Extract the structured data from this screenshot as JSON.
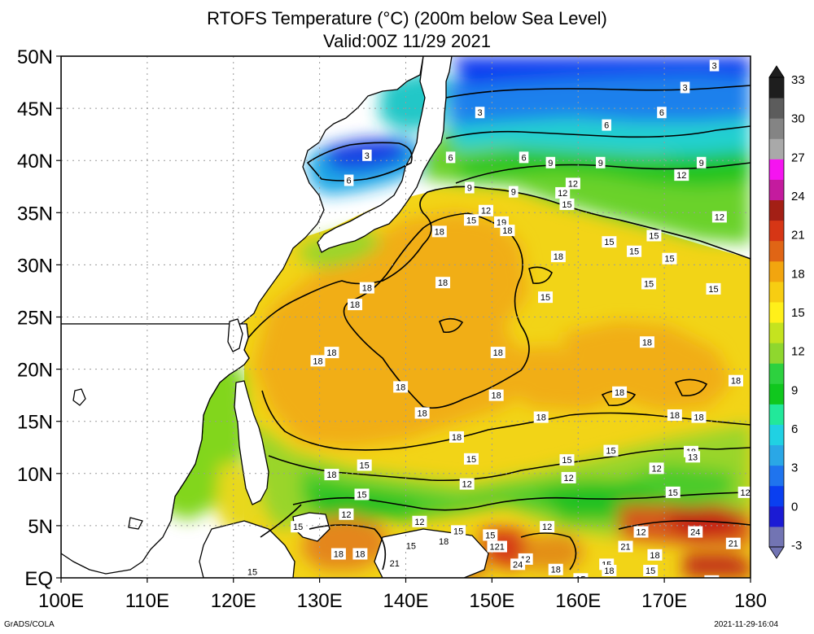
{
  "title": {
    "line1": "RTOFS Temperature (°C) (200m below Sea Level)",
    "line2": "Valid:00Z 11/29 2021"
  },
  "footer": {
    "left": "GrADS/COLA",
    "right": "2021-11-29-16:04"
  },
  "map": {
    "lon_labels": [
      "100E",
      "110E",
      "120E",
      "130E",
      "140E",
      "150E",
      "160E",
      "170E",
      "180"
    ],
    "lat_labels": [
      "50N",
      "45N",
      "40N",
      "35N",
      "30N",
      "25N",
      "20N",
      "15N",
      "10N",
      "5N",
      "EQ"
    ],
    "lon_range": [
      100,
      180
    ],
    "lat_range": [
      0,
      50
    ],
    "gridlines": "dotted",
    "contour_labels": [
      {
        "v": "3",
        "lon": 175.8,
        "lat": 49.1
      },
      {
        "v": "3",
        "lon": 172.4,
        "lat": 47.0
      },
      {
        "v": "3",
        "lon": 148.6,
        "lat": 44.6
      },
      {
        "v": "6",
        "lon": 169.7,
        "lat": 44.6
      },
      {
        "v": "6",
        "lon": 163.3,
        "lat": 43.4
      },
      {
        "v": "3",
        "lon": 135.5,
        "lat": 40.5
      },
      {
        "v": "6",
        "lon": 145.2,
        "lat": 40.3
      },
      {
        "v": "6",
        "lon": 153.7,
        "lat": 40.3
      },
      {
        "v": "9",
        "lon": 156.8,
        "lat": 39.8
      },
      {
        "v": "9",
        "lon": 162.6,
        "lat": 39.8
      },
      {
        "v": "9",
        "lon": 174.3,
        "lat": 39.8
      },
      {
        "v": "6",
        "lon": 133.4,
        "lat": 38.1
      },
      {
        "v": "12",
        "lon": 172.0,
        "lat": 38.6
      },
      {
        "v": "12",
        "lon": 159.4,
        "lat": 37.8
      },
      {
        "v": "9",
        "lon": 147.4,
        "lat": 37.4
      },
      {
        "v": "9",
        "lon": 152.5,
        "lat": 37.0
      },
      {
        "v": "12",
        "lon": 158.2,
        "lat": 36.9
      },
      {
        "v": "15",
        "lon": 158.7,
        "lat": 35.8
      },
      {
        "v": "12",
        "lon": 149.3,
        "lat": 35.2
      },
      {
        "v": "15",
        "lon": 147.6,
        "lat": 34.3
      },
      {
        "v": "19",
        "lon": 151.1,
        "lat": 34.1
      },
      {
        "v": "18",
        "lon": 151.8,
        "lat": 33.3
      },
      {
        "v": "18",
        "lon": 143.9,
        "lat": 33.2
      },
      {
        "v": "12",
        "lon": 176.4,
        "lat": 34.6
      },
      {
        "v": "15",
        "lon": 168.8,
        "lat": 32.8
      },
      {
        "v": "15",
        "lon": 163.6,
        "lat": 32.2
      },
      {
        "v": "15",
        "lon": 166.5,
        "lat": 31.3
      },
      {
        "v": "18",
        "lon": 157.7,
        "lat": 30.8
      },
      {
        "v": "15",
        "lon": 170.6,
        "lat": 30.6
      },
      {
        "v": "18",
        "lon": 144.3,
        "lat": 28.3
      },
      {
        "v": "18",
        "lon": 135.5,
        "lat": 27.8
      },
      {
        "v": "15",
        "lon": 168.2,
        "lat": 28.2
      },
      {
        "v": "15",
        "lon": 175.7,
        "lat": 27.7
      },
      {
        "v": "15",
        "lon": 156.2,
        "lat": 26.9
      },
      {
        "v": "18",
        "lon": 134.1,
        "lat": 26.2
      },
      {
        "v": "18",
        "lon": 168.0,
        "lat": 22.6
      },
      {
        "v": "18",
        "lon": 150.7,
        "lat": 21.6
      },
      {
        "v": "18",
        "lon": 131.4,
        "lat": 21.6
      },
      {
        "v": "18",
        "lon": 129.8,
        "lat": 20.8
      },
      {
        "v": "18",
        "lon": 178.3,
        "lat": 18.9
      },
      {
        "v": "18",
        "lon": 139.4,
        "lat": 18.3
      },
      {
        "v": "18",
        "lon": 150.5,
        "lat": 17.5
      },
      {
        "v": "18",
        "lon": 164.8,
        "lat": 17.8
      },
      {
        "v": "18",
        "lon": 141.9,
        "lat": 15.8
      },
      {
        "v": "18",
        "lon": 155.7,
        "lat": 15.4
      },
      {
        "v": "18",
        "lon": 171.2,
        "lat": 15.6
      },
      {
        "v": "18",
        "lon": 174.0,
        "lat": 15.4
      },
      {
        "v": "18",
        "lon": 145.9,
        "lat": 13.5
      },
      {
        "v": "15",
        "lon": 163.8,
        "lat": 12.2
      },
      {
        "v": "18",
        "lon": 173.1,
        "lat": 12.1
      },
      {
        "v": "13",
        "lon": 173.3,
        "lat": 11.6
      },
      {
        "v": "15",
        "lon": 147.6,
        "lat": 11.4
      },
      {
        "v": "15",
        "lon": 158.7,
        "lat": 11.3
      },
      {
        "v": "15",
        "lon": 135.2,
        "lat": 10.8
      },
      {
        "v": "12",
        "lon": 169.1,
        "lat": 10.5
      },
      {
        "v": "18",
        "lon": 131.4,
        "lat": 9.9
      },
      {
        "v": "12",
        "lon": 158.9,
        "lat": 9.6
      },
      {
        "v": "12",
        "lon": 147.1,
        "lat": 9.0
      },
      {
        "v": "15",
        "lon": 171.0,
        "lat": 8.2
      },
      {
        "v": "12",
        "lon": 179.4,
        "lat": 8.2
      },
      {
        "v": "15",
        "lon": 134.9,
        "lat": 8.0
      },
      {
        "v": "12",
        "lon": 133.1,
        "lat": 6.1
      },
      {
        "v": "12",
        "lon": 141.6,
        "lat": 5.4
      },
      {
        "v": "15",
        "lon": 127.5,
        "lat": 4.9
      },
      {
        "v": "12",
        "lon": 156.4,
        "lat": 4.9
      },
      {
        "v": "12",
        "lon": 167.3,
        "lat": 4.4
      },
      {
        "v": "24",
        "lon": 173.6,
        "lat": 4.4
      },
      {
        "v": "15",
        "lon": 146.1,
        "lat": 4.5
      },
      {
        "v": "15",
        "lon": 149.8,
        "lat": 4.1
      },
      {
        "v": "18",
        "lon": 144.4,
        "lat": 3.5
      },
      {
        "v": "121",
        "lon": 150.6,
        "lat": 3.0
      },
      {
        "v": "15",
        "lon": 140.6,
        "lat": 3.1
      },
      {
        "v": "21",
        "lon": 165.5,
        "lat": 3.0
      },
      {
        "v": "21",
        "lon": 178.0,
        "lat": 3.3
      },
      {
        "v": "18",
        "lon": 132.2,
        "lat": 2.3
      },
      {
        "v": "18",
        "lon": 134.7,
        "lat": 2.3
      },
      {
        "v": "18",
        "lon": 168.9,
        "lat": 2.2
      },
      {
        "v": "12",
        "lon": 153.9,
        "lat": 1.8
      },
      {
        "v": "21",
        "lon": 138.7,
        "lat": 1.4
      },
      {
        "v": "24",
        "lon": 153.0,
        "lat": 1.3
      },
      {
        "v": "15",
        "lon": 163.3,
        "lat": 1.3
      },
      {
        "v": "18",
        "lon": 163.6,
        "lat": 0.7
      },
      {
        "v": "18",
        "lon": 157.4,
        "lat": 0.8
      },
      {
        "v": "15",
        "lon": 168.4,
        "lat": 0.7
      },
      {
        "v": "15",
        "lon": 122.2,
        "lat": 0.6
      },
      {
        "v": "21",
        "lon": 175.5,
        "lat": -0.3
      },
      {
        "v": "15",
        "lon": 160.3,
        "lat": -0.1
      }
    ]
  },
  "colorbar": {
    "labels": [
      "33",
      "30",
      "27",
      "24",
      "21",
      "18",
      "15",
      "12",
      "9",
      "6",
      "3",
      "0",
      "-3"
    ],
    "colors": [
      "#7274b3",
      "#1b1bd4",
      "#0a3ff0",
      "#1f74ee",
      "#2aa7e6",
      "#20d1e3",
      "#22e89a",
      "#10c71e",
      "#2dd13f",
      "#8fd72e",
      "#c5e31f",
      "#fff01a",
      "#f7cd12",
      "#f2a50f",
      "#e06515",
      "#d63615",
      "#a31f15",
      "#c41b9e",
      "#f514f0",
      "#a9a9a9",
      "#848484",
      "#5c5c5c",
      "#1e1e1e"
    ]
  }
}
